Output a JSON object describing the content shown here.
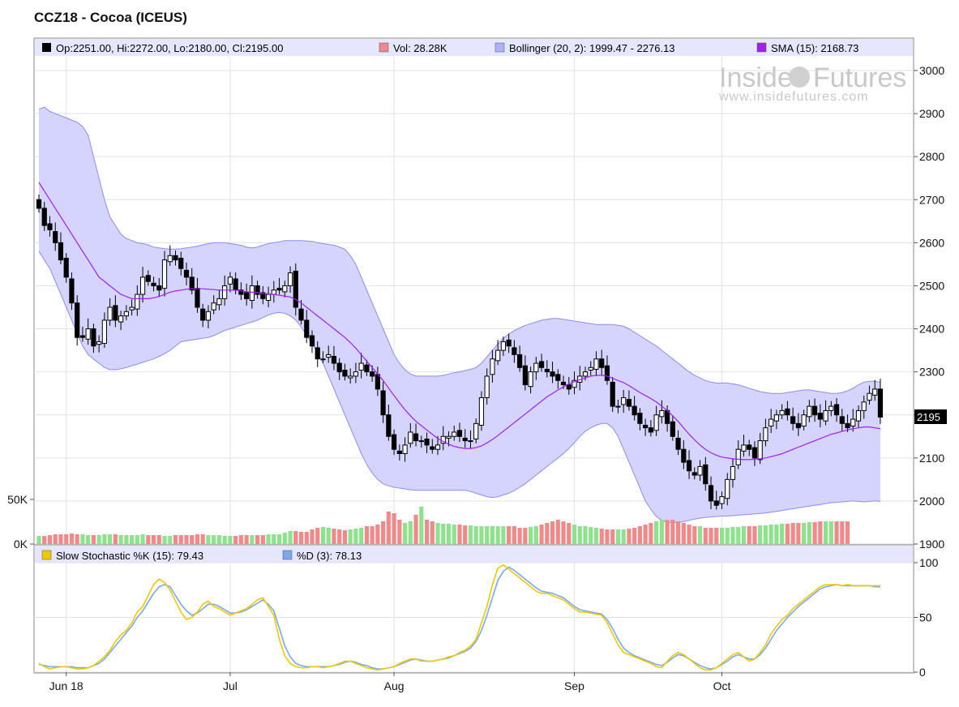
{
  "title": "CCZ18 - Cocoa (ICEUS)",
  "watermark": {
    "brand_left": "Inside",
    "brand_right": "Futures",
    "url": "www.insidefutures.com"
  },
  "legend": {
    "ohlc": "Op:2251.00, Hi:2272.00, Lo:2180.00, Cl:2195.00",
    "vol": "Vol: 28.28K",
    "bollinger": "Bollinger (20, 2): 1999.47 - 2276.13",
    "sma": "SMA (15): 2168.73"
  },
  "stoch_legend": {
    "k": "Slow Stochastic %K (15): 79.43",
    "d": "%D (3): 78.13"
  },
  "last_price_label": "2195",
  "colors": {
    "up_candle": "#ffffff",
    "down_candle": "#000000",
    "band_fill": "#d4d4ff",
    "band_edge": "#8c8cf0",
    "sma": "#a020f0",
    "vol_up": "#8ee28e",
    "vol_down": "#f08a8a",
    "k_line": "#f0c800",
    "d_line": "#7aa8e8",
    "legend_bg": "#e6e6ff"
  },
  "chart_data": [
    {
      "type": "candlestick",
      "title": "CCZ18 - Cocoa (ICEUS)",
      "y_ticks": [
        1900,
        2000,
        2100,
        2200,
        2300,
        2400,
        2500,
        2600,
        2700,
        2800,
        2900,
        3000
      ],
      "ylim": [
        1900,
        3050
      ],
      "x_tick_labels": [
        "Jun 18",
        "Jul",
        "Aug",
        "Sep",
        "Oct"
      ],
      "x_tick_bar_index": [
        5,
        35,
        65,
        98,
        125
      ],
      "bars_count": 155,
      "close": [
        2680,
        2640,
        2630,
        2600,
        2560,
        2520,
        2460,
        2380,
        2380,
        2400,
        2360,
        2370,
        2420,
        2450,
        2420,
        2430,
        2440,
        2450,
        2480,
        2520,
        2510,
        2500,
        2490,
        2560,
        2570,
        2560,
        2540,
        2520,
        2490,
        2450,
        2420,
        2440,
        2460,
        2470,
        2500,
        2520,
        2490,
        2480,
        2470,
        2500,
        2480,
        2470,
        2480,
        2490,
        2490,
        2500,
        2530,
        2450,
        2420,
        2380,
        2360,
        2330,
        2330,
        2340,
        2320,
        2300,
        2290,
        2290,
        2300,
        2320,
        2300,
        2290,
        2260,
        2200,
        2150,
        2120,
        2110,
        2130,
        2160,
        2140,
        2140,
        2130,
        2120,
        2130,
        2150,
        2150,
        2160,
        2150,
        2140,
        2140,
        2180,
        2240,
        2290,
        2330,
        2350,
        2370,
        2360,
        2340,
        2310,
        2270,
        2300,
        2320,
        2310,
        2300,
        2290,
        2280,
        2270,
        2260,
        2280,
        2290,
        2300,
        2310,
        2330,
        2310,
        2280,
        2220,
        2220,
        2240,
        2220,
        2200,
        2180,
        2170,
        2160,
        2200,
        2210,
        2180,
        2150,
        2120,
        2090,
        2070,
        2060,
        2080,
        2040,
        2000,
        1990,
        2010,
        2050,
        2080,
        2120,
        2130,
        2120,
        2100,
        2140,
        2170,
        2190,
        2200,
        2210,
        2200,
        2180,
        2170,
        2200,
        2220,
        2200,
        2190,
        2210,
        2220,
        2200,
        2180,
        2170,
        2190,
        2210,
        2230,
        2250,
        2260,
        2195
      ],
      "sma_15": [
        2740,
        2720,
        2700,
        2680,
        2660,
        2640,
        2620,
        2600,
        2580,
        2560,
        2540,
        2520,
        2510,
        2500,
        2490,
        2480,
        2475,
        2470,
        2470,
        2470,
        2470,
        2472,
        2475,
        2480,
        2485,
        2488,
        2490,
        2492,
        2493,
        2493,
        2493,
        2492,
        2491,
        2490,
        2490,
        2490,
        2490,
        2488,
        2486,
        2485,
        2484,
        2482,
        2481,
        2480,
        2478,
        2476,
        2474,
        2468,
        2460,
        2450,
        2440,
        2430,
        2420,
        2410,
        2400,
        2390,
        2380,
        2368,
        2355,
        2340,
        2325,
        2310,
        2295,
        2280,
        2262,
        2245,
        2228,
        2212,
        2198,
        2185,
        2175,
        2165,
        2155,
        2145,
        2138,
        2132,
        2127,
        2124,
        2122,
        2122,
        2124,
        2128,
        2135,
        2143,
        2152,
        2162,
        2172,
        2182,
        2192,
        2202,
        2212,
        2222,
        2232,
        2242,
        2250,
        2258,
        2265,
        2272,
        2277,
        2282,
        2286,
        2290,
        2292,
        2292,
        2290,
        2285,
        2280,
        2275,
        2268,
        2260,
        2252,
        2245,
        2238,
        2230,
        2220,
        2210,
        2198,
        2185,
        2170,
        2155,
        2142,
        2130,
        2120,
        2112,
        2106,
        2102,
        2100,
        2098,
        2097,
        2096,
        2096,
        2097,
        2098,
        2100,
        2103,
        2106,
        2110,
        2115,
        2120,
        2125,
        2130,
        2135,
        2140,
        2145,
        2150,
        2155,
        2158,
        2162,
        2165,
        2168,
        2170,
        2172,
        2172,
        2170,
        2168
      ],
      "bollinger_upper": [
        2910,
        2915,
        2905,
        2900,
        2895,
        2890,
        2885,
        2880,
        2870,
        2850,
        2800,
        2750,
        2700,
        2660,
        2640,
        2620,
        2610,
        2605,
        2600,
        2598,
        2595,
        2590,
        2588,
        2586,
        2585,
        2585,
        2586,
        2588,
        2590,
        2592,
        2595,
        2598,
        2600,
        2600,
        2600,
        2598,
        2596,
        2594,
        2590,
        2588,
        2590,
        2594,
        2598,
        2600,
        2602,
        2605,
        2605,
        2605,
        2605,
        2604,
        2603,
        2600,
        2598,
        2596,
        2594,
        2590,
        2585,
        2570,
        2550,
        2520,
        2490,
        2460,
        2430,
        2400,
        2370,
        2340,
        2320,
        2305,
        2295,
        2290,
        2290,
        2290,
        2290,
        2290,
        2292,
        2295,
        2298,
        2300,
        2303,
        2306,
        2310,
        2320,
        2335,
        2350,
        2365,
        2378,
        2388,
        2396,
        2402,
        2408,
        2412,
        2416,
        2420,
        2422,
        2424,
        2424,
        2422,
        2420,
        2418,
        2416,
        2414,
        2412,
        2410,
        2410,
        2410,
        2410,
        2408,
        2406,
        2400,
        2392,
        2384,
        2376,
        2368,
        2360,
        2350,
        2340,
        2330,
        2320,
        2310,
        2300,
        2292,
        2286,
        2280,
        2276,
        2274,
        2274,
        2274,
        2272,
        2270,
        2266,
        2262,
        2258,
        2254,
        2252,
        2250,
        2250,
        2250,
        2252,
        2254,
        2256,
        2258,
        2258,
        2256,
        2254,
        2252,
        2250,
        2250,
        2252,
        2256,
        2262,
        2270,
        2276,
        2278,
        2278,
        2276
      ],
      "bollinger_lower": [
        2580,
        2560,
        2540,
        2510,
        2480,
        2450,
        2420,
        2390,
        2360,
        2340,
        2330,
        2320,
        2310,
        2305,
        2305,
        2307,
        2310,
        2314,
        2318,
        2322,
        2326,
        2330,
        2336,
        2342,
        2350,
        2360,
        2370,
        2372,
        2374,
        2376,
        2378,
        2380,
        2384,
        2390,
        2396,
        2400,
        2404,
        2408,
        2412,
        2416,
        2420,
        2426,
        2432,
        2436,
        2438,
        2436,
        2430,
        2420,
        2404,
        2385,
        2365,
        2345,
        2320,
        2290,
        2260,
        2230,
        2200,
        2170,
        2140,
        2110,
        2085,
        2065,
        2050,
        2040,
        2035,
        2032,
        2030,
        2028,
        2026,
        2025,
        2025,
        2025,
        2025,
        2025,
        2025,
        2025,
        2025,
        2025,
        2025,
        2022,
        2018,
        2014,
        2010,
        2008,
        2010,
        2014,
        2018,
        2024,
        2032,
        2040,
        2050,
        2060,
        2070,
        2080,
        2090,
        2100,
        2110,
        2122,
        2135,
        2150,
        2162,
        2170,
        2176,
        2180,
        2180,
        2170,
        2150,
        2120,
        2090,
        2060,
        2030,
        2000,
        1980,
        1964,
        1955,
        1950,
        1950,
        1950,
        1952,
        1955,
        1958,
        1960,
        1962,
        1963,
        1964,
        1965,
        1965,
        1966,
        1967,
        1968,
        1969,
        1970,
        1971,
        1972,
        1974,
        1976,
        1978,
        1980,
        1982,
        1984,
        1986,
        1988,
        1990,
        1992,
        1994,
        1996,
        1997,
        1998,
        1999,
        2000,
        1999,
        1998,
        1999,
        2000,
        1999
      ],
      "volume_ticks": [
        "0K",
        "50K"
      ],
      "volume_k": [
        10,
        10,
        11,
        12,
        12,
        12,
        13,
        12,
        12,
        11,
        11,
        11,
        12,
        12,
        12,
        11,
        11,
        11,
        11,
        12,
        11,
        11,
        11,
        10,
        10,
        11,
        11,
        11,
        11,
        12,
        12,
        11,
        11,
        11,
        10,
        10,
        10,
        11,
        11,
        11,
        11,
        11,
        12,
        12,
        12,
        14,
        16,
        16,
        15,
        15,
        18,
        20,
        21,
        20,
        19,
        18,
        17,
        18,
        19,
        20,
        22,
        22,
        24,
        28,
        40,
        38,
        30,
        26,
        28,
        36,
        46,
        30,
        28,
        26,
        25,
        25,
        24,
        24,
        23,
        23,
        22,
        22,
        22,
        22,
        22,
        22,
        22,
        22,
        20,
        20,
        21,
        22,
        24,
        26,
        28,
        30,
        28,
        26,
        24,
        22,
        22,
        21,
        20,
        19,
        18,
        18,
        18,
        18,
        19,
        20,
        22,
        24,
        26,
        28,
        30,
        30,
        30,
        28,
        26,
        24,
        22,
        22,
        20,
        20,
        20,
        20,
        20,
        21,
        21,
        22,
        22,
        22,
        23,
        23,
        24,
        24,
        25,
        25,
        26,
        26,
        26,
        27,
        27,
        28,
        28,
        28,
        28,
        28,
        28
      ],
      "volume_ylim": [
        0,
        55
      ]
    },
    {
      "type": "line",
      "title": "Slow Stochastic",
      "y_ticks": [
        0,
        50,
        100
      ],
      "ylim": [
        0,
        100
      ],
      "series": [
        {
          "name": "Slow Stochastic %K (15): 79.43",
          "values": [
            8,
            5,
            3,
            4,
            5,
            5,
            4,
            3,
            3,
            4,
            6,
            10,
            14,
            20,
            28,
            34,
            38,
            45,
            55,
            60,
            70,
            80,
            85,
            82,
            75,
            65,
            55,
            48,
            50,
            55,
            62,
            65,
            60,
            58,
            55,
            52,
            54,
            56,
            58,
            62,
            66,
            68,
            60,
            52,
            30,
            15,
            8,
            5,
            4,
            4,
            5,
            5,
            4,
            5,
            6,
            8,
            10,
            10,
            8,
            6,
            4,
            3,
            2,
            3,
            4,
            5,
            8,
            10,
            12,
            12,
            10,
            10,
            10,
            11,
            12,
            14,
            15,
            18,
            20,
            24,
            30,
            45,
            60,
            80,
            95,
            98,
            94,
            90,
            86,
            82,
            78,
            74,
            72,
            72,
            70,
            68,
            66,
            62,
            58,
            55,
            55,
            54,
            53,
            52,
            45,
            35,
            25,
            18,
            16,
            14,
            12,
            10,
            8,
            5,
            4,
            10,
            15,
            18,
            16,
            12,
            8,
            4,
            2,
            2,
            4,
            8,
            12,
            16,
            18,
            14,
            10,
            12,
            18,
            25,
            35,
            42,
            48,
            52,
            58,
            62,
            66,
            70,
            74,
            78,
            80,
            80,
            80,
            79,
            80,
            79,
            79,
            79,
            79,
            79,
            79
          ]
        },
        {
          "name": "%D (3): 78.13",
          "values": [
            7,
            6,
            5,
            5,
            5,
            5,
            5,
            4,
            4,
            4,
            6,
            8,
            12,
            18,
            24,
            30,
            36,
            42,
            50,
            56,
            64,
            72,
            78,
            80,
            78,
            70,
            62,
            56,
            52,
            54,
            58,
            62,
            62,
            60,
            57,
            54,
            54,
            55,
            57,
            60,
            63,
            66,
            62,
            56,
            40,
            24,
            14,
            8,
            6,
            5,
            5,
            5,
            5,
            5,
            6,
            7,
            9,
            10,
            9,
            7,
            6,
            4,
            3,
            3,
            4,
            5,
            7,
            9,
            11,
            12,
            11,
            10,
            10,
            11,
            12,
            13,
            15,
            17,
            19,
            22,
            28,
            38,
            52,
            68,
            84,
            92,
            96,
            93,
            89,
            85,
            81,
            77,
            74,
            73,
            72,
            70,
            68,
            64,
            60,
            57,
            56,
            55,
            54,
            53,
            48,
            40,
            30,
            22,
            18,
            15,
            13,
            11,
            9,
            7,
            6,
            9,
            13,
            16,
            15,
            12,
            9,
            6,
            4,
            3,
            4,
            7,
            10,
            14,
            16,
            14,
            12,
            12,
            16,
            22,
            30,
            38,
            44,
            50,
            55,
            60,
            64,
            68,
            72,
            76,
            78,
            79,
            80,
            79,
            79,
            79,
            79,
            79,
            79,
            78,
            78
          ]
        }
      ]
    }
  ]
}
